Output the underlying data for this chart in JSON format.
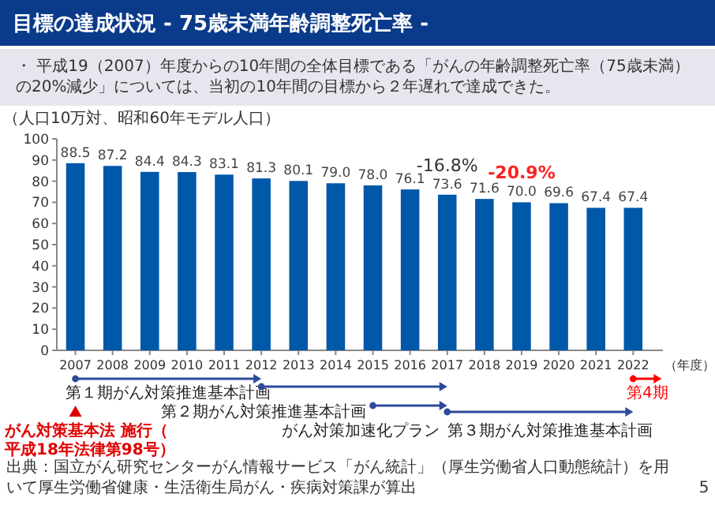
{
  "chart_data": {
    "type": "bar",
    "title": "目標の達成状況 - 75歳未満年齢調整死亡率 -",
    "subtitle": "・ 平成19（2007）年度からの10年間の全体目標である「がんの年齢調整死亡率（75歳未満）の20%減少」については、当初の10年間の目標から２年遅れで達成できた。",
    "ylabel": "（人口10万対、昭和60年モデル人口）",
    "xlabel": "（年度）",
    "x": [
      2007,
      2008,
      2009,
      2010,
      2011,
      2012,
      2013,
      2014,
      2015,
      2016,
      2017,
      2018,
      2019,
      2020,
      2021,
      2022
    ],
    "values": [
      88.5,
      87.2,
      84.4,
      84.3,
      83.1,
      81.3,
      80.1,
      79.0,
      78.0,
      76.1,
      73.6,
      71.6,
      70.0,
      69.6,
      67.4,
      67.4
    ],
    "color": "#0058a8",
    "value_labels": [
      "88.5",
      "87.2",
      "84.4",
      "84.3",
      "83.1",
      "81.3",
      "80.1",
      "79.0",
      "78.0",
      "76.1",
      "73.6",
      "71.6",
      "70.0",
      "69.6",
      "67.4",
      "67.4"
    ],
    "xlim": [
      2006.5,
      2022.8
    ],
    "xticks": [
      2007,
      2008,
      2009,
      2010,
      2011,
      2012,
      2013,
      2014,
      2015,
      2016,
      2017,
      2018,
      2019,
      2020,
      2021,
      2022
    ],
    "ylim": [
      0,
      100
    ],
    "yticks": [
      0,
      10,
      20,
      30,
      40,
      50,
      60,
      70,
      80,
      90,
      100
    ],
    "grid": false,
    "annotations": [
      {
        "text": "-16.8%",
        "x": 2017,
        "y": 73.6
      },
      {
        "text": "-20.9%",
        "x": 2019,
        "y": 70.0
      },
      "第１期がん対策推進基本計画",
      "第２期がん対策推進基本計画",
      "がん対策加速化プラン",
      "第３期がん対策推進基本計画",
      "第4期",
      "がん対策基本法 施行（平成18年法律第98号）",
      "出典：国立がん研究センターがん情報サービス「がん統計」（厚生労働省人口動態統計）を用いて厚生労働省健康・生活衛生局がん・疾病対策課が算出",
      "5"
    ]
  }
}
